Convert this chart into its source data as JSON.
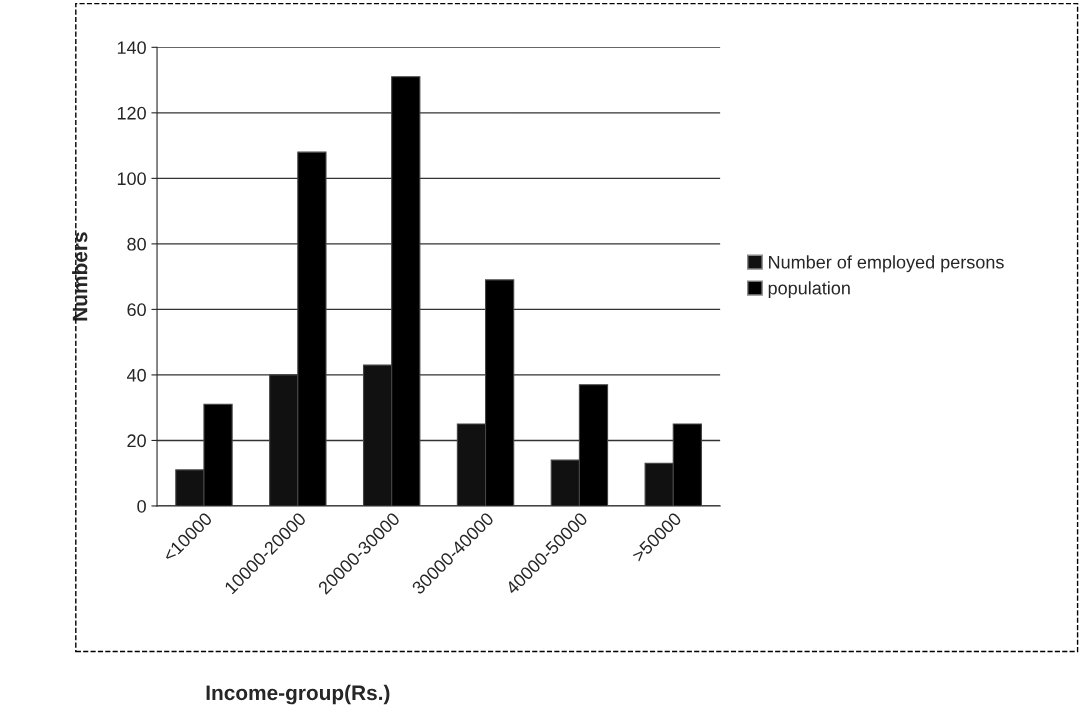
{
  "chart_data": {
    "type": "bar",
    "xlabel": "Income-group(Rs.)",
    "ylabel": "Numbers",
    "categories": [
      "<10000",
      "10000-20000",
      "20000-30000",
      "30000-40000",
      "40000-50000",
      ">50000"
    ],
    "series": [
      {
        "name": "Number of employed persons",
        "color": "#111111",
        "values": [
          11,
          40,
          43,
          25,
          14,
          13
        ]
      },
      {
        "name": "population",
        "color": "#000000",
        "values": [
          31,
          108,
          131,
          69,
          37,
          25
        ]
      }
    ],
    "ylim": [
      0,
      140
    ],
    "yticks": [
      0,
      20,
      40,
      60,
      80,
      100,
      120,
      140
    ],
    "grid": "y",
    "legend": "right"
  }
}
